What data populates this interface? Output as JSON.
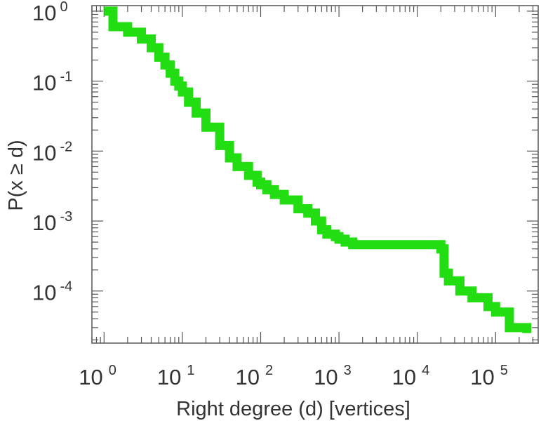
{
  "chart_data": {
    "type": "line",
    "title": "",
    "xlabel": "Right degree (d) [vertices]",
    "ylabel": "P(x ≥ d)",
    "x_scale": "log",
    "y_scale": "log",
    "xlim": [
      0.7,
      350000
    ],
    "ylim": [
      1.8e-05,
      1.2
    ],
    "grid": false,
    "x_ticks": [
      {
        "base": "10",
        "exp": "0",
        "value": 1
      },
      {
        "base": "10",
        "exp": "1",
        "value": 10
      },
      {
        "base": "10",
        "exp": "2",
        "value": 100
      },
      {
        "base": "10",
        "exp": "3",
        "value": 1000
      },
      {
        "base": "10",
        "exp": "4",
        "value": 10000
      },
      {
        "base": "10",
        "exp": "5",
        "value": 100000
      }
    ],
    "y_ticks": [
      {
        "base": "10",
        "exp": "0",
        "value": 1
      },
      {
        "base": "10",
        "exp": "-1",
        "value": 0.1
      },
      {
        "base": "10",
        "exp": "-2",
        "value": 0.01
      },
      {
        "base": "10",
        "exp": "-3",
        "value": 0.001
      },
      {
        "base": "10",
        "exp": "-4",
        "value": 0.0001
      }
    ],
    "series": [
      {
        "color": "#22dd11",
        "x": [
          1,
          1.3,
          2,
          3,
          4,
          5,
          6,
          7,
          8,
          9,
          10,
          12,
          15,
          20,
          30,
          40,
          50,
          70,
          90,
          100,
          120,
          150,
          200,
          300,
          400,
          500,
          600,
          700,
          900,
          1000,
          1200,
          1500,
          2000,
          5000,
          10000,
          15000,
          20000,
          22000,
          25000,
          35000,
          50000,
          80000,
          100000,
          150000,
          250000
        ],
        "y": [
          1,
          0.6,
          0.5,
          0.4,
          0.3,
          0.22,
          0.17,
          0.13,
          0.1,
          0.085,
          0.07,
          0.05,
          0.035,
          0.022,
          0.012,
          0.008,
          0.006,
          0.0045,
          0.0036,
          0.0033,
          0.0028,
          0.0024,
          0.002,
          0.0015,
          0.0013,
          0.001,
          0.00075,
          0.00065,
          0.0006,
          0.00055,
          0.0005,
          0.00046,
          0.00046,
          0.00046,
          0.00046,
          0.00046,
          0.0004,
          0.00018,
          0.00014,
          0.0001,
          8e-05,
          6e-05,
          5e-05,
          3e-05,
          2.5e-05
        ]
      }
    ]
  }
}
